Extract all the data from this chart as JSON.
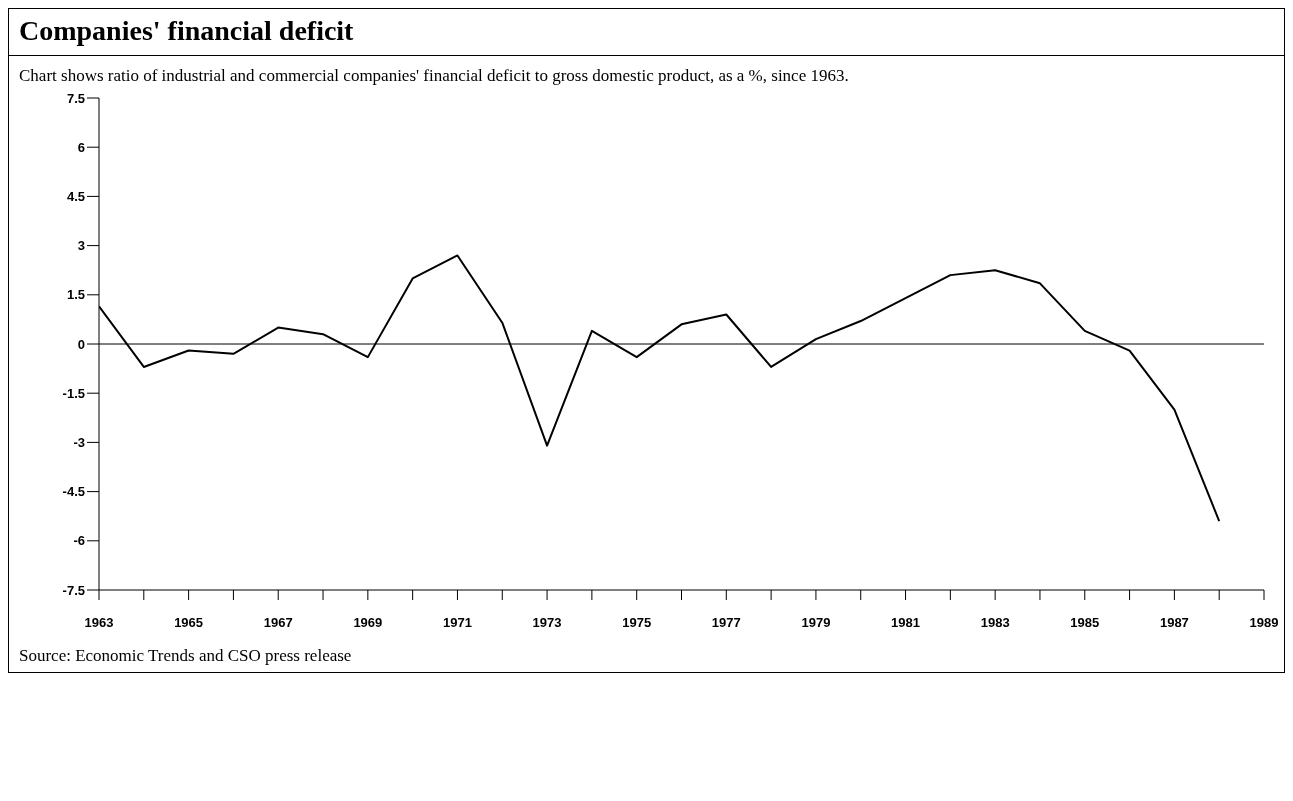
{
  "chart_data": {
    "type": "line",
    "title": "Companies' financial deficit",
    "subtitle": "Chart shows ratio of industrial and commercial companies' financial deficit to gross domestic product, as a %, since 1963.",
    "x": [
      1963,
      1964,
      1965,
      1966,
      1967,
      1968,
      1969,
      1970,
      1971,
      1972,
      1973,
      1974,
      1975,
      1976,
      1977,
      1978,
      1979,
      1980,
      1981,
      1982,
      1983,
      1984,
      1985,
      1986,
      1987,
      1988
    ],
    "series": [
      {
        "color": "#000000",
        "values": [
          1.15,
          -0.7,
          -0.2,
          -0.3,
          0.5,
          0.3,
          -0.4,
          2.0,
          2.7,
          0.65,
          -3.1,
          0.4,
          -0.4,
          0.6,
          0.9,
          -0.7,
          0.15,
          0.7,
          1.4,
          2.1,
          2.25,
          1.85,
          0.4,
          -0.2,
          -2.0,
          -5.4
        ]
      }
    ],
    "xlim": [
      1963,
      1989
    ],
    "xticks": [
      1963,
      {
        "value": 1964,
        "label": null
      },
      1965,
      {
        "value": 1966,
        "label": null
      },
      1967,
      {
        "value": 1968,
        "label": null
      },
      1969,
      {
        "value": 1970,
        "label": null
      },
      1971,
      {
        "value": 1972,
        "label": null
      },
      1973,
      {
        "value": 1974,
        "label": null
      },
      1975,
      {
        "value": 1976,
        "label": null
      },
      1977,
      {
        "value": 1978,
        "label": null
      },
      1979,
      {
        "value": 1980,
        "label": null
      },
      1981,
      {
        "value": 1982,
        "label": null
      },
      1983,
      {
        "value": 1984,
        "label": null
      },
      1985,
      {
        "value": 1986,
        "label": null
      },
      1987,
      {
        "value": 1988,
        "label": null
      },
      1989
    ],
    "ylim": [
      -7.5,
      7.5
    ],
    "yticks": [
      -7.5,
      -6,
      -4.5,
      -3,
      -1.5,
      0,
      1.5,
      3,
      4.5,
      6,
      7.5
    ],
    "ref_lines": [
      {
        "axis": "y",
        "value": 0,
        "color": "#000000"
      }
    ],
    "grid": false,
    "legend": false,
    "marker": "none",
    "line_style": "solid",
    "annotations": [
      "Source:  Economic Trends and CSO press release"
    ]
  }
}
